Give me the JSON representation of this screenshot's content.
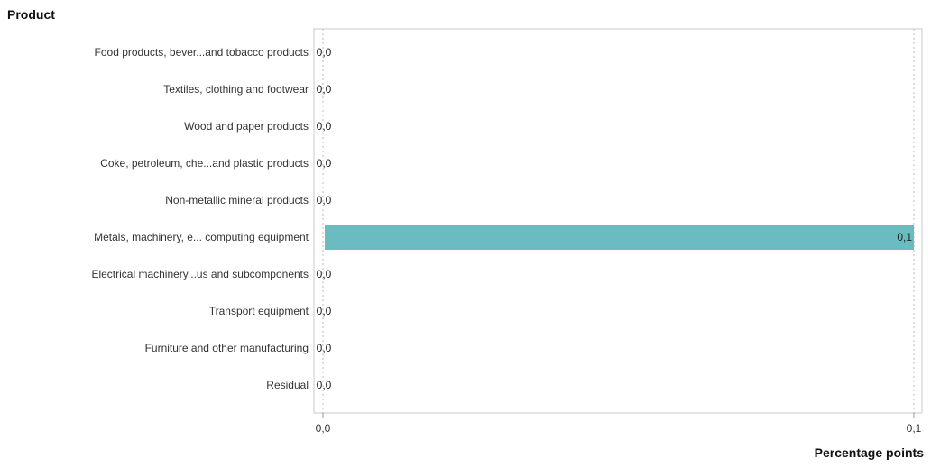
{
  "chart_data": {
    "type": "bar",
    "orientation": "horizontal",
    "ylabel": "Product",
    "xlabel": "Percentage points",
    "categories": [
      "Food products, bever...and tobacco products",
      "Textiles, clothing and footwear",
      "Wood and paper products",
      "Coke, petroleum, che...and plastic products",
      "Non-metallic mineral products",
      "Metals, machinery, e... computing equipment",
      "Electrical machinery...us and subcomponents",
      "Transport equipment",
      "Furniture and other manufacturing",
      "Residual"
    ],
    "values": [
      0.0,
      0.0,
      0.0,
      0.0,
      0.0,
      0.1,
      0.0,
      0.0,
      0.0,
      0.0
    ],
    "value_labels": [
      "0,0",
      "0,0",
      "0,0",
      "0,0",
      "0,0",
      "0,1",
      "0,0",
      "0,0",
      "0,0",
      "0,0"
    ],
    "xlim": [
      0.0,
      0.1
    ],
    "xticks": [
      0.0,
      0.1
    ],
    "xtick_labels": [
      "0,0",
      "0,1"
    ],
    "grid": "vertical dotted",
    "bar_color": "#6bbcc1"
  }
}
